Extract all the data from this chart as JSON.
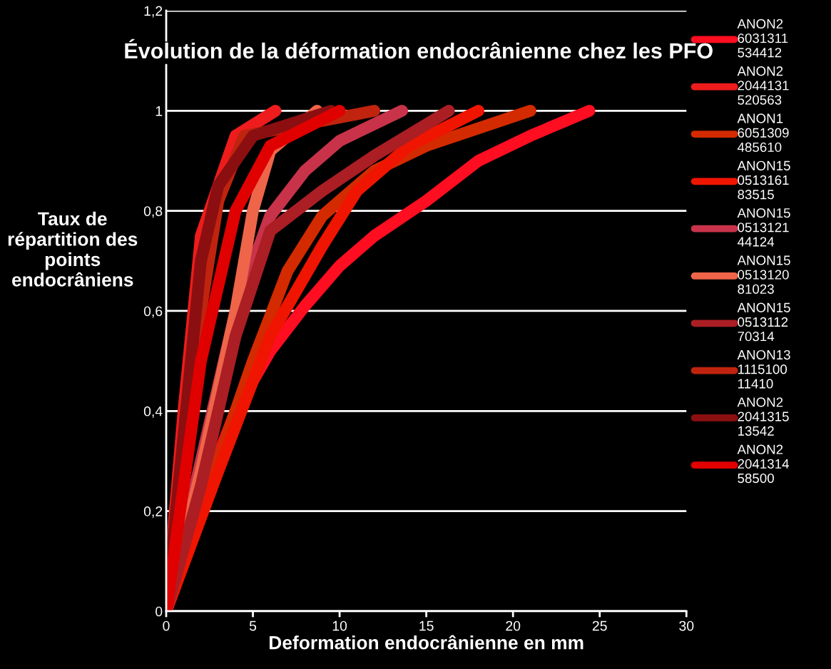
{
  "chart_data": {
    "type": "line",
    "title": "Évolution de la déformation endocrânienne chez les PFO",
    "xlabel": "Deformation endocrânienne en mm",
    "ylabel": "Taux de\nrépartition des\npoints\nendocrâniens",
    "xlim": [
      0,
      30
    ],
    "xticks": [
      0,
      5,
      10,
      15,
      20,
      25,
      30
    ],
    "ylim": [
      0,
      1.2
    ],
    "yticks": [
      0,
      {
        "value": 0.2,
        "label": "0,2"
      },
      {
        "value": 0.4,
        "label": "0,4"
      },
      {
        "value": 0.6,
        "label": "0,6"
      },
      {
        "value": 0.8,
        "label": "0,8"
      },
      1,
      {
        "value": 1.2,
        "label": "1,2"
      }
    ],
    "grid": "y",
    "legend": "right",
    "line_style": "solid",
    "series": [
      {
        "name": "ANON2\n6031311\n534412",
        "color": "#ff0d20",
        "x": [
          0,
          2,
          4,
          6,
          8,
          10,
          12,
          15,
          18,
          21,
          24.4
        ],
        "values": [
          0,
          0.22,
          0.4,
          0.52,
          0.61,
          0.69,
          0.75,
          0.82,
          0.9,
          0.95,
          1
        ]
      },
      {
        "name": "ANON2\n2044131\n520563",
        "color": "#ee1c1c",
        "x": [
          0,
          1,
          2,
          4,
          6.3
        ],
        "values": [
          0,
          0.4,
          0.75,
          0.95,
          1
        ]
      },
      {
        "name": "ANON1\n6051309\n485610",
        "color": "#d42a00",
        "x": [
          0,
          3,
          5,
          7,
          9,
          12,
          15,
          21
        ],
        "values": [
          0,
          0.3,
          0.5,
          0.68,
          0.79,
          0.88,
          0.93,
          1
        ]
      },
      {
        "name": "ANON15\n0513161\n83515",
        "color": "#f01500",
        "x": [
          0,
          3,
          6,
          9,
          11,
          14,
          18
        ],
        "values": [
          0,
          0.28,
          0.55,
          0.73,
          0.84,
          0.93,
          1
        ]
      },
      {
        "name": "ANON15\n0513121\n44124",
        "color": "#c8334a",
        "x": [
          0,
          2,
          4,
          6,
          8,
          10,
          13.6
        ],
        "values": [
          0,
          0.3,
          0.6,
          0.79,
          0.88,
          0.94,
          1
        ]
      },
      {
        "name": "ANON15\n0513120\n81023",
        "color": "#ef6549",
        "x": [
          0,
          2,
          4,
          5,
          6,
          8.7
        ],
        "values": [
          0,
          0.28,
          0.6,
          0.8,
          0.92,
          1
        ]
      },
      {
        "name": "ANON15\n0513112\n70314",
        "color": "#ab1e24",
        "x": [
          0,
          2,
          4,
          6,
          9,
          12,
          16.3
        ],
        "values": [
          0,
          0.25,
          0.55,
          0.76,
          0.84,
          0.91,
          1
        ]
      },
      {
        "name": "ANON13\n1115100\n11410",
        "color": "#c0240e",
        "x": [
          0,
          1,
          2,
          3,
          4.5,
          12
        ],
        "values": [
          0,
          0.3,
          0.6,
          0.82,
          0.95,
          1
        ]
      },
      {
        "name": "ANON2\n2041315\n13542",
        "color": "#8b0f10",
        "x": [
          0,
          1,
          2,
          3,
          5,
          9.5
        ],
        "values": [
          0,
          0.35,
          0.7,
          0.85,
          0.95,
          1
        ]
      },
      {
        "name": "ANON2\n2041314\n58500",
        "color": "#e00000",
        "x": [
          0,
          2,
          4,
          6,
          10
        ],
        "values": [
          0,
          0.5,
          0.8,
          0.93,
          1
        ]
      }
    ]
  }
}
